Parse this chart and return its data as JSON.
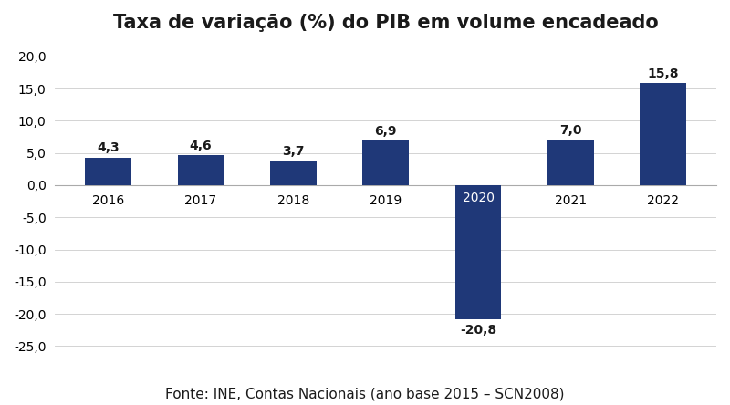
{
  "title": "Taxa de variação (%) do PIB em volume encadeado",
  "categories": [
    "2016",
    "2017",
    "2018",
    "2019",
    "2020",
    "2021",
    "2022"
  ],
  "values": [
    4.3,
    4.6,
    3.7,
    6.9,
    -20.8,
    7.0,
    15.8
  ],
  "bar_color": "#1F3878",
  "label_color": "#1a1a1a",
  "ylim": [
    -27,
    22
  ],
  "yticks": [
    -25,
    -20,
    -15,
    -10,
    -5,
    0,
    5,
    10,
    15,
    20
  ],
  "title_fontsize": 15,
  "label_fontsize": 10,
  "tick_fontsize": 10,
  "footnote": "Fonte: INE, Contas Nacionais (ano base 2015 – SCN2008)",
  "footnote_fontsize": 11,
  "background_color": "#ffffff",
  "grid_color": "#cccccc",
  "zero_line_color": "#aaaaaa"
}
